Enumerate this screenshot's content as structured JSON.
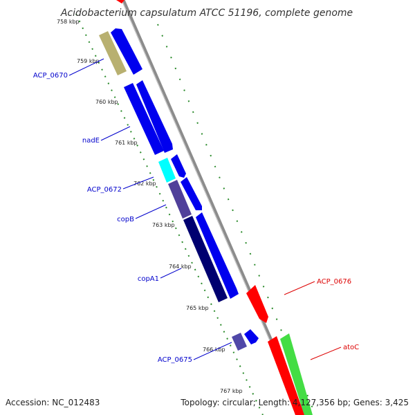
{
  "title": "Acidobacterium capsulatum ATCC 51196, complete genome",
  "accession": "Accession: NC_012483",
  "summary": "Topology: circular; Length: 4,127,356 bp; Genes: 3,425",
  "colors": {
    "backbone": "#8c8c8c",
    "tick_dots": "#2a8a2a",
    "label_forward": "#0000cc",
    "label_reverse": "#dd0000"
  },
  "scale": {
    "unit": "kbp",
    "ticks": [
      "758 kbp",
      "759 kbp",
      "760 kbp",
      "761 kbp",
      "762 kbp",
      "763 kbp",
      "764 kbp",
      "765 kbp",
      "766 kbp",
      "767 kbp"
    ]
  },
  "genes": [
    {
      "name": "ACP_0670",
      "strand": "reverse-left",
      "color": "#b8b070"
    },
    {
      "name": "nadE",
      "strand": "forward",
      "color": "#0000ee"
    },
    {
      "name": "ACP_0672",
      "strand": "forward",
      "color": "#00ffff"
    },
    {
      "name": "copB",
      "strand": "forward",
      "color": "#50409a"
    },
    {
      "name": "copA1",
      "strand": "forward",
      "color": "#000070"
    },
    {
      "name": "ACP_0675",
      "strand": "forward",
      "color": "#5048a8"
    },
    {
      "name": "ACP_0676",
      "strand": "reverse",
      "color": "#ff0000"
    },
    {
      "name": "atoC",
      "strand": "reverse",
      "color": "#44dd44"
    }
  ],
  "unlabeled_features": [
    {
      "name": "blue-cds",
      "color": "#0000ee"
    }
  ]
}
